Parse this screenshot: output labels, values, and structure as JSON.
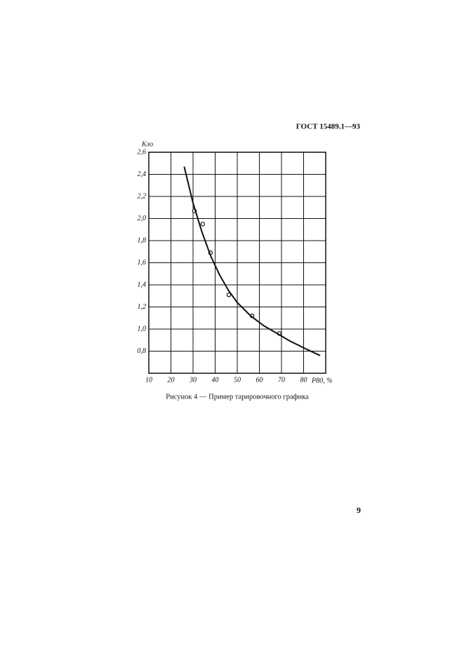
{
  "header": {
    "title": "ГОСТ 15489.1—93"
  },
  "chart_data": {
    "type": "scatter",
    "y_label": "Кло",
    "x_label": "P80, %",
    "xlim": [
      10,
      90
    ],
    "xticks": [
      10,
      20,
      30,
      40,
      50,
      60,
      70,
      80
    ],
    "ylim": [
      0.6,
      2.6
    ],
    "yticks": [
      {
        "value": 0.8,
        "label": "0,8"
      },
      {
        "value": 1.0,
        "label": "1,0"
      },
      {
        "value": 1.2,
        "label": "1,2"
      },
      {
        "value": 1.4,
        "label": "1,4"
      },
      {
        "value": 1.6,
        "label": "1,6"
      },
      {
        "value": 1.8,
        "label": "1,8"
      },
      {
        "value": 2.0,
        "label": "2,0"
      },
      {
        "value": 2.2,
        "label": "2,2"
      },
      {
        "value": 2.4,
        "label": "2,4"
      },
      {
        "value": 2.6,
        "label": "2,6"
      }
    ],
    "grid": true,
    "series": [
      {
        "mode": "markers",
        "color": "#111111",
        "x": [
          30.6,
          34.4,
          37.9,
          46.2,
          56.7,
          69.0
        ],
        "values": [
          2.07,
          1.95,
          1.69,
          1.31,
          1.12,
          0.96
        ]
      },
      {
        "mode": "line",
        "color": "#111111",
        "x": [
          26,
          30,
          34,
          38,
          42,
          46,
          50,
          56,
          62,
          68,
          74,
          80,
          87.5
        ],
        "values": [
          2.47,
          2.14,
          1.88,
          1.66,
          1.49,
          1.35,
          1.24,
          1.12,
          1.03,
          0.96,
          0.89,
          0.83,
          0.76
        ]
      }
    ]
  },
  "caption": "Рисунок 4 — Пример тарировочного графика",
  "page_number": "9"
}
